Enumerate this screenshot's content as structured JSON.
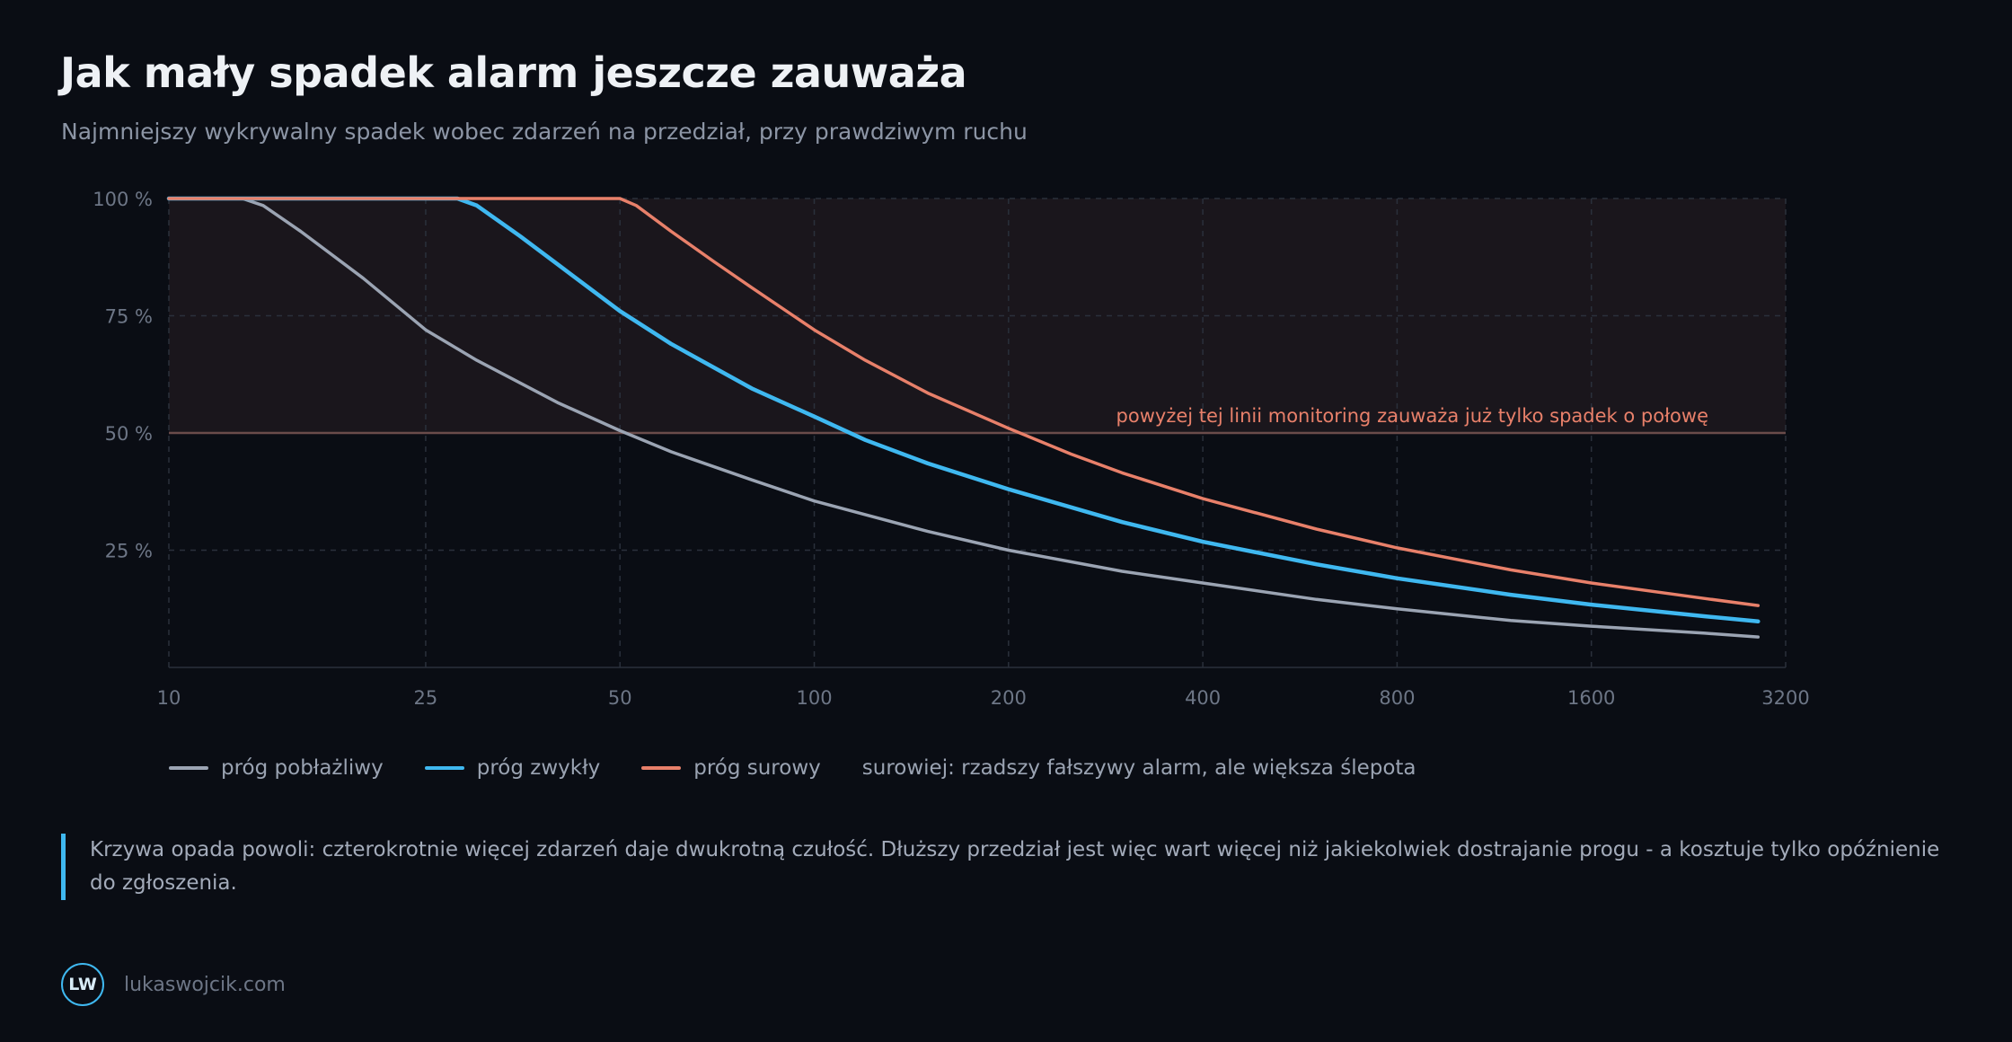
{
  "header": {
    "title": "Jak mały spadek alarm jeszcze zauważa",
    "subtitle": "Najmniejszy wykrywalny spadek wobec zdarzeń na przedział, przy prawdziwym ruchu"
  },
  "chart_data": {
    "type": "line",
    "x_scale": "log",
    "xlim": [
      10,
      3200
    ],
    "ylim": [
      0,
      100
    ],
    "x_ticks": [
      10,
      25,
      50,
      100,
      200,
      400,
      800,
      1600,
      3200
    ],
    "x_tick_labels": [
      "10",
      "25",
      "50",
      "100",
      "200",
      "400",
      "800",
      "1600",
      "3200"
    ],
    "y_ticks": [
      25,
      50,
      75,
      100
    ],
    "y_tick_labels": [
      "25 %",
      "50 %",
      "75 %",
      "100 %"
    ],
    "grid": true,
    "threshold": {
      "y": 50,
      "label": "powyżej tej linii monitoring zauważa już tylko spadek o połowę",
      "color": "#e8806a"
    },
    "series": [
      {
        "name": "próg pobłażliwy",
        "color": "#9ba4b3",
        "x": [
          10,
          13,
          14,
          16,
          20,
          25,
          30,
          40,
          50,
          60,
          80,
          100,
          150,
          200,
          300,
          400,
          600,
          800,
          1200,
          1600,
          2400,
          2900
        ],
        "values": [
          100,
          100,
          98.5,
          93,
          83,
          72,
          65.5,
          56.5,
          50.5,
          46,
          40,
          35.5,
          29,
          25,
          20.5,
          18,
          14.5,
          12.5,
          10,
          8.8,
          7.3,
          6.5
        ]
      },
      {
        "name": "próg zwykły",
        "color": "#3fb8f0",
        "x": [
          10,
          28,
          30,
          35,
          40,
          50,
          60,
          80,
          100,
          120,
          150,
          200,
          300,
          400,
          600,
          800,
          1200,
          1600,
          2400,
          2900
        ],
        "values": [
          100,
          100,
          98.5,
          92,
          86,
          76,
          69,
          59.5,
          53.5,
          48.5,
          43.5,
          38,
          31,
          26.8,
          22,
          19,
          15.5,
          13.4,
          10.9,
          9.8
        ]
      },
      {
        "name": "próg surowy",
        "color": "#e8806a",
        "x": [
          10,
          50,
          53,
          60,
          70,
          80,
          100,
          120,
          150,
          200,
          250,
          300,
          400,
          600,
          800,
          1200,
          1600,
          2400,
          2900
        ],
        "values": [
          100,
          100,
          98.5,
          93,
          86.5,
          81,
          72,
          65.5,
          58.5,
          51,
          45.5,
          41.5,
          36,
          29.5,
          25.5,
          20.8,
          18,
          14.7,
          13.2
        ]
      }
    ]
  },
  "legend": {
    "items": [
      {
        "label": "próg pobłażliwy",
        "color": "#9ba4b3"
      },
      {
        "label": "próg zwykły",
        "color": "#3fb8f0"
      },
      {
        "label": "próg surowy",
        "color": "#e8806a"
      }
    ],
    "note": "surowiej: rzadszy fałszywy alarm, ale większa ślepota"
  },
  "callout": {
    "text": "Krzywa opada powoli: czterokrotnie więcej zdarzeń daje dwukrotną czułość. Dłuższy przedział jest więc wart więcej niż jakiekolwiek dostrajanie progu - a kosztuje tylko opóźnienie do zgłoszenia."
  },
  "footer": {
    "logo_text": "LW",
    "site": "lukaswojcik.com"
  }
}
